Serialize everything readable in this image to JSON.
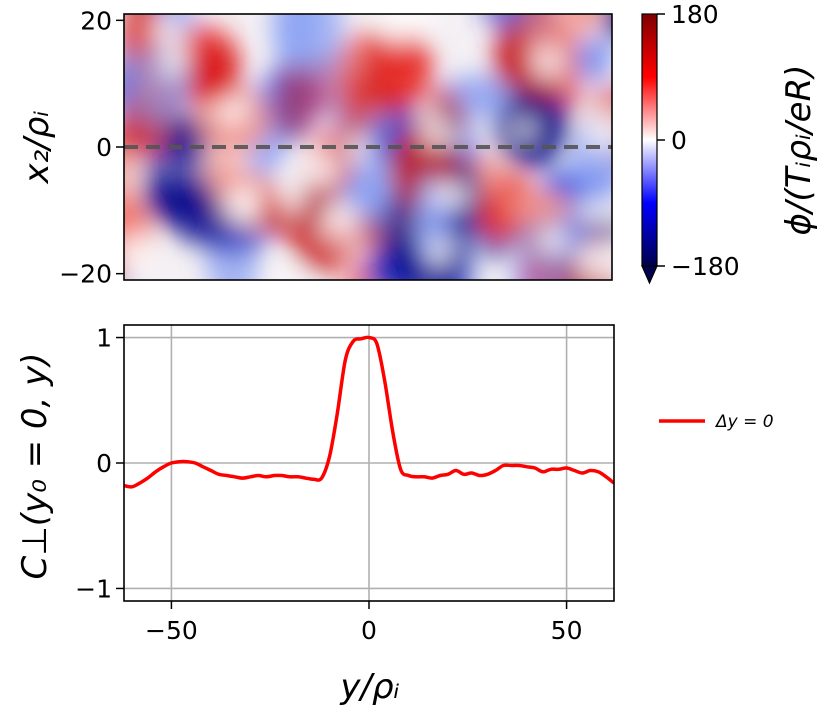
{
  "chart_data": [
    {
      "type": "heatmap",
      "title": "",
      "xlabel": "",
      "ylabel": "x₂/ρᵢ",
      "ylim": [
        -21,
        21
      ],
      "yticks": [
        {
          "value": 20,
          "label": "20"
        },
        {
          "value": 0,
          "label": "0"
        },
        {
          "value": -20,
          "label": "−20"
        }
      ],
      "reference_line": {
        "y": 0,
        "style": "dashed",
        "color": "#555555"
      },
      "colorbar": {
        "label": "ϕ/(Tᵢρᵢ/eR)",
        "range": [
          -180,
          180
        ],
        "ticks": [
          {
            "value": 180,
            "label": "180"
          },
          {
            "value": 0,
            "label": "0"
          },
          {
            "value": -180,
            "label": "−180"
          }
        ],
        "colormap": "seismic"
      }
    },
    {
      "type": "line",
      "title": "",
      "xlabel": "y/ρᵢ",
      "ylabel": "C⊥(y₀ = 0, y)",
      "xlim": [
        -62,
        62
      ],
      "ylim": [
        -1.1,
        1.1
      ],
      "grid": true,
      "legend_position": "right-middle",
      "xticks": [
        {
          "value": -50,
          "label": "−50"
        },
        {
          "value": 0,
          "label": "0"
        },
        {
          "value": 50,
          "label": "50"
        }
      ],
      "yticks": [
        {
          "value": 1,
          "label": "1"
        },
        {
          "value": 0,
          "label": "0"
        },
        {
          "value": -1,
          "label": "−1"
        }
      ],
      "series": [
        {
          "name": "Δy = 0",
          "color": "#ff0000",
          "x": [
            -62,
            -60,
            -58,
            -56,
            -54,
            -52,
            -50,
            -48,
            -46,
            -44,
            -42,
            -40,
            -38,
            -36,
            -34,
            -32,
            -30,
            -28,
            -26,
            -24,
            -22,
            -20,
            -18,
            -16,
            -14,
            -12,
            -10,
            -8,
            -6,
            -4,
            -2,
            0,
            2,
            4,
            6,
            8,
            10,
            12,
            14,
            16,
            18,
            20,
            22,
            24,
            26,
            28,
            30,
            32,
            34,
            36,
            38,
            40,
            42,
            44,
            46,
            48,
            50,
            52,
            54,
            56,
            58,
            60,
            62
          ],
          "y": [
            -0.18,
            -0.19,
            -0.16,
            -0.12,
            -0.07,
            -0.03,
            0.0,
            0.01,
            0.01,
            0.0,
            -0.03,
            -0.06,
            -0.09,
            -0.1,
            -0.11,
            -0.12,
            -0.11,
            -0.1,
            -0.11,
            -0.1,
            -0.1,
            -0.11,
            -0.11,
            -0.12,
            -0.13,
            -0.12,
            0.05,
            0.4,
            0.82,
            0.97,
            0.99,
            1.0,
            0.95,
            0.65,
            0.25,
            -0.05,
            -0.1,
            -0.11,
            -0.11,
            -0.12,
            -0.1,
            -0.09,
            -0.06,
            -0.09,
            -0.08,
            -0.1,
            -0.09,
            -0.06,
            -0.02,
            -0.02,
            -0.02,
            -0.03,
            -0.04,
            -0.07,
            -0.05,
            -0.05,
            -0.04,
            -0.06,
            -0.08,
            -0.06,
            -0.07,
            -0.11,
            -0.16
          ]
        }
      ]
    }
  ]
}
